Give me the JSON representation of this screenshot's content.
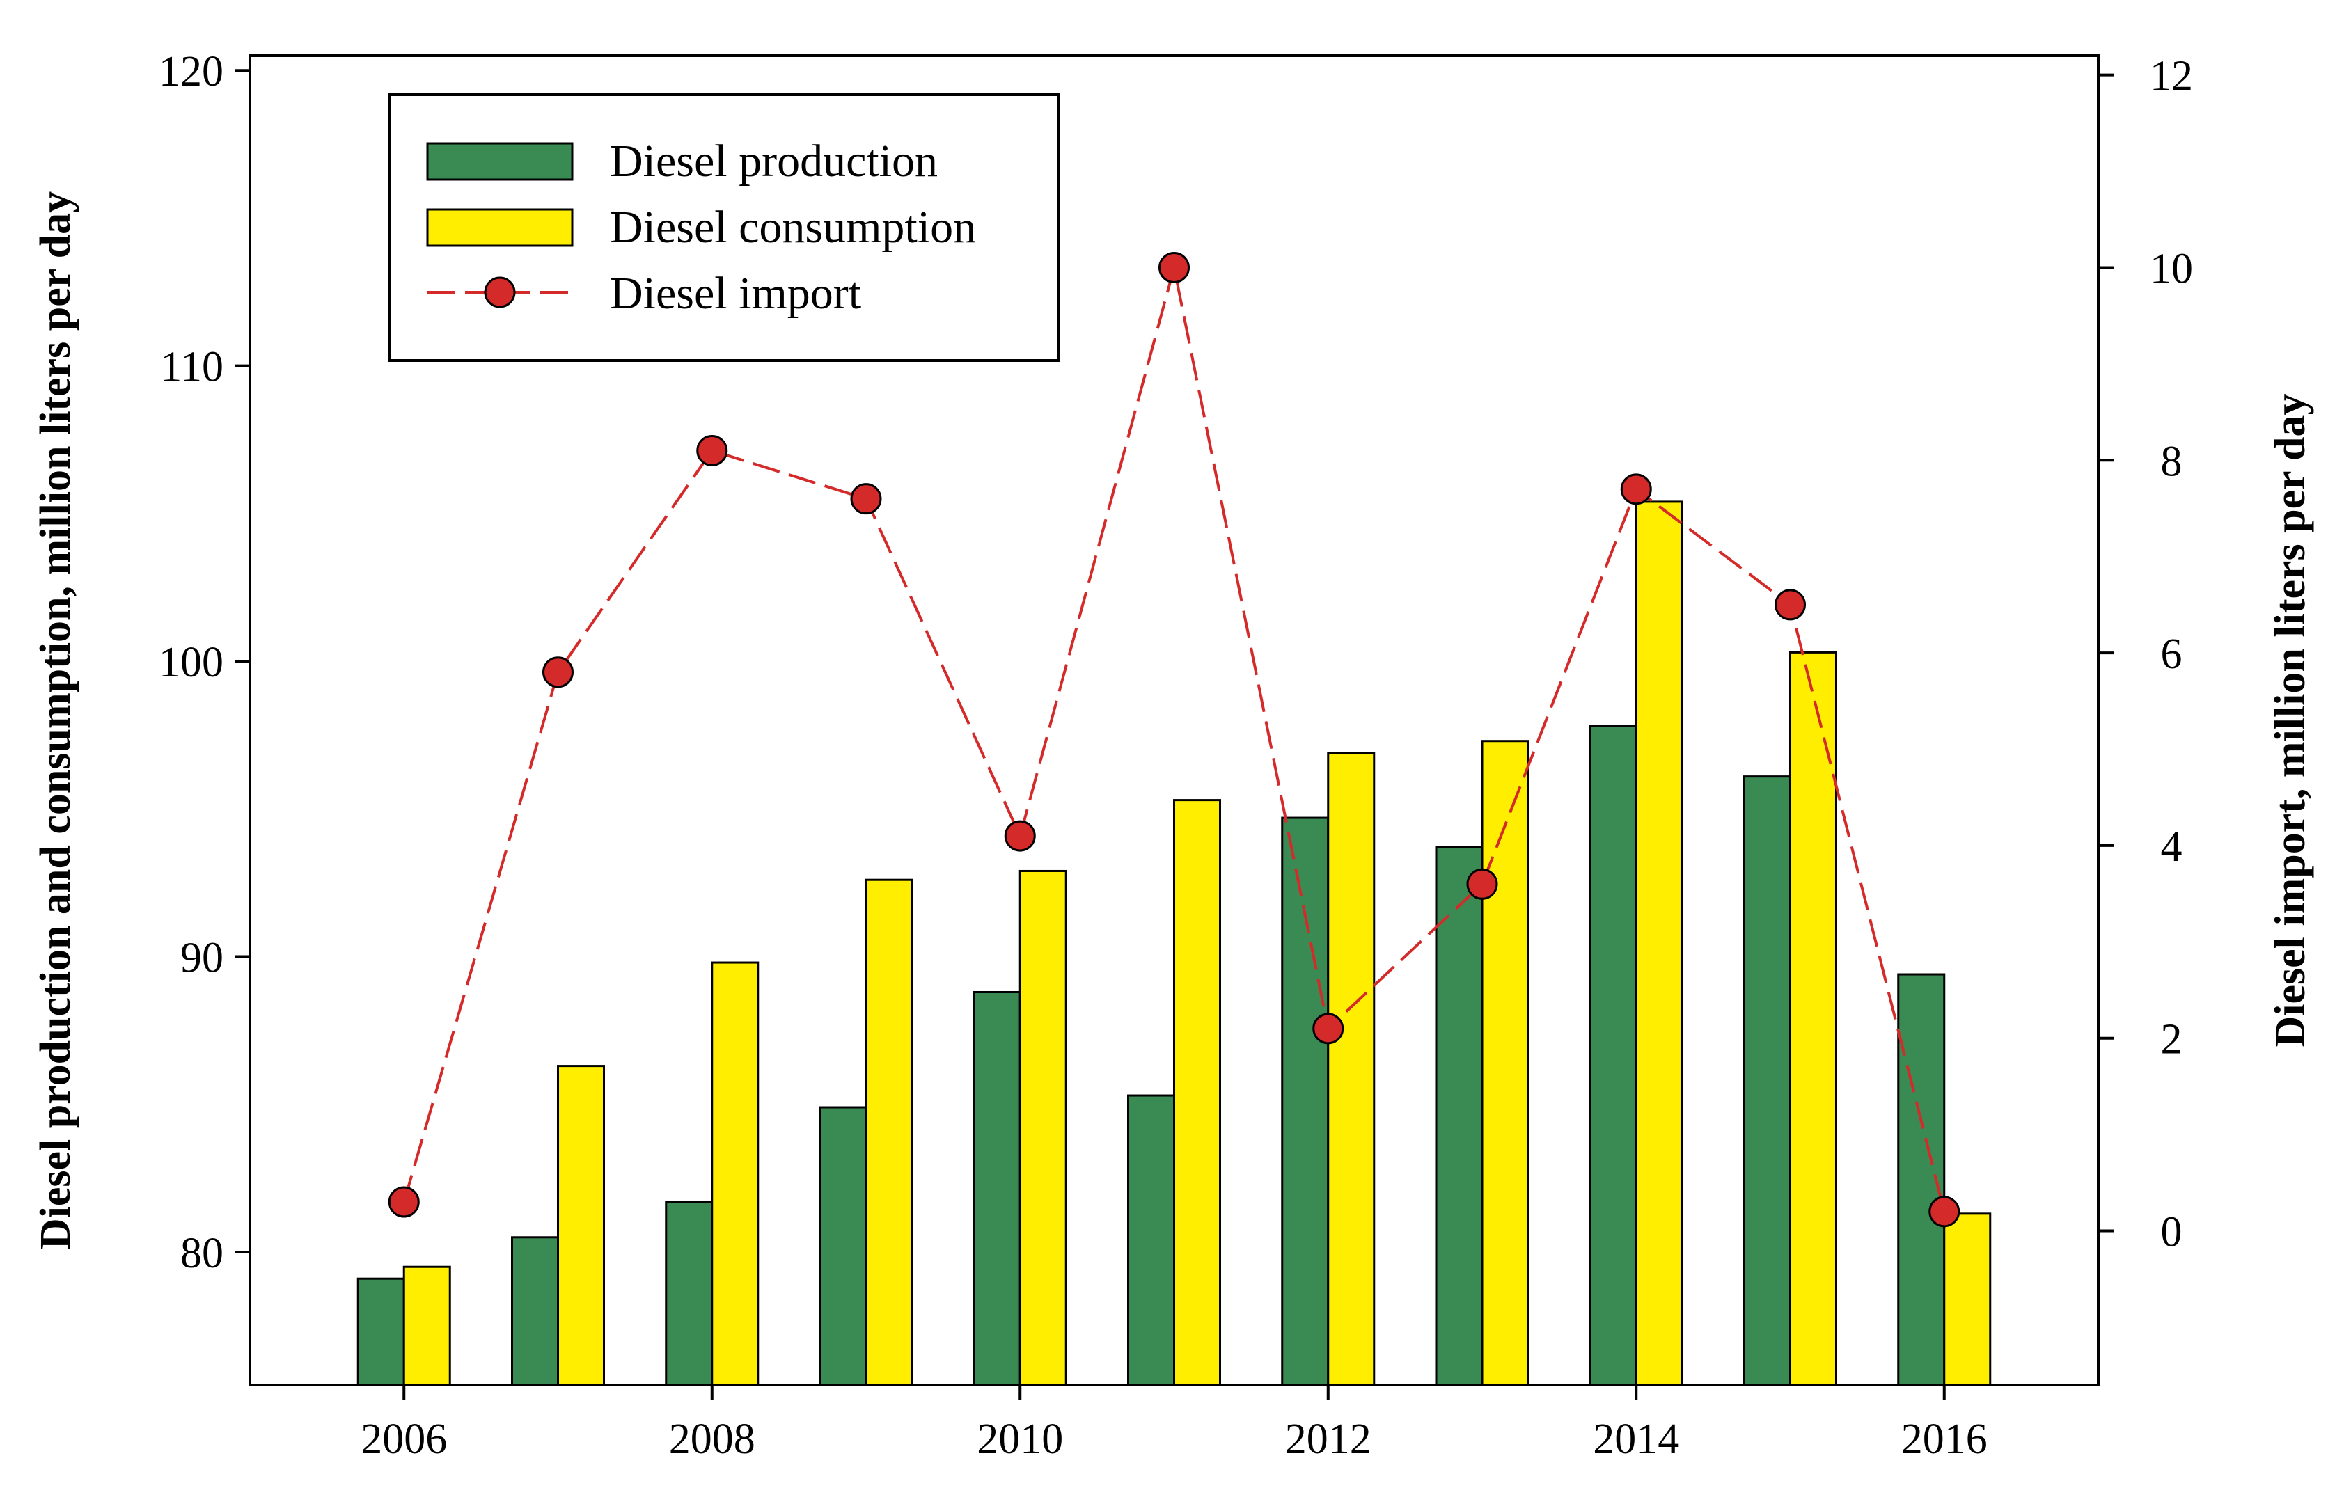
{
  "chart_data": {
    "type": "bar",
    "title": "",
    "x": [
      2006,
      2007,
      2008,
      2009,
      2010,
      2011,
      2012,
      2013,
      2014,
      2015,
      2016
    ],
    "xticks": [
      "2006",
      "2008",
      "2010",
      "2012",
      "2014",
      "2016"
    ],
    "xlim": [
      2005,
      2017
    ],
    "xlabel": "",
    "ylabel": "Diesel production and consumption, million liters per day",
    "ylim": [
      75.5,
      120.5
    ],
    "yticks": [
      "80",
      "90",
      "100",
      "110",
      "120"
    ],
    "y2label": "Diesel import, million liters per day",
    "y2lim": [
      -1.6,
      12.2
    ],
    "y2ticks": [
      "0",
      "2",
      "4",
      "6",
      "8",
      "10",
      "12"
    ],
    "grid": false,
    "legend_position": "top-left",
    "series": [
      {
        "name": "Diesel production",
        "kind": "bar",
        "axis": "left",
        "color": "#3a8a54",
        "values": [
          79.1,
          80.5,
          81.7,
          84.9,
          88.8,
          85.3,
          94.7,
          93.7,
          97.8,
          96.1,
          89.4
        ]
      },
      {
        "name": "Diesel consumption",
        "kind": "bar",
        "axis": "left",
        "color": "#ffee00",
        "values": [
          79.5,
          86.3,
          89.8,
          92.6,
          92.9,
          95.3,
          96.9,
          97.3,
          105.4,
          100.3,
          81.3
        ]
      },
      {
        "name": "Diesel import",
        "kind": "line",
        "axis": "right",
        "line_style": "dashed",
        "color": "#d42a2a",
        "values": [
          0.3,
          5.8,
          8.1,
          7.6,
          4.1,
          10.0,
          2.1,
          3.6,
          7.7,
          6.5,
          0.2
        ]
      }
    ]
  }
}
